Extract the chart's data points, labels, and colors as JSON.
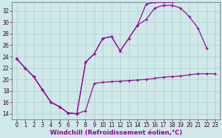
{
  "background_color": "#cfe8e8",
  "grid_color": "#aacccc",
  "line_color": "#990099",
  "marker": "+",
  "xlabel": "Windchill (Refroidissement éolien,°C)",
  "xlabel_fontsize": 6.5,
  "tick_fontsize": 5.5,
  "xlim": [
    -0.5,
    23.5
  ],
  "ylim": [
    13,
    33.5
  ],
  "yticks": [
    14,
    16,
    18,
    20,
    22,
    24,
    26,
    28,
    30,
    32
  ],
  "xticks": [
    0,
    1,
    2,
    3,
    4,
    5,
    6,
    7,
    8,
    9,
    10,
    11,
    12,
    13,
    14,
    15,
    16,
    17,
    18,
    19,
    20,
    21,
    22,
    23
  ],
  "series1_x": [
    0,
    1,
    2,
    3,
    4,
    5,
    6,
    7,
    8,
    9,
    10,
    11,
    12,
    13,
    14,
    15,
    16,
    17,
    18,
    19,
    20,
    21,
    22,
    23
  ],
  "series1_y": [
    23.7,
    22.0,
    20.5,
    18.2,
    16.0,
    15.2,
    14.1,
    14.0,
    14.5,
    19.3,
    19.5,
    19.6,
    19.7,
    19.8,
    19.9,
    20.0,
    20.2,
    20.4,
    20.5,
    20.6,
    20.8,
    21.0,
    21.0,
    21.0
  ],
  "series2_x": [
    0,
    1,
    2,
    3,
    4,
    5,
    6,
    7,
    8,
    9,
    10,
    11,
    12,
    13,
    14,
    15,
    16,
    17,
    18,
    19,
    20,
    21,
    22
  ],
  "series2_y": [
    23.7,
    22.0,
    20.5,
    18.2,
    16.0,
    15.2,
    14.1,
    14.0,
    23.0,
    24.5,
    27.2,
    27.5,
    25.0,
    27.2,
    29.5,
    30.5,
    32.5,
    33.0,
    33.0,
    32.5,
    31.0,
    29.0,
    25.5
  ],
  "series3_x": [
    0,
    1,
    2,
    3,
    4,
    5,
    6,
    7,
    8,
    9,
    10,
    11,
    12,
    13,
    14,
    15,
    16,
    17,
    18
  ],
  "series3_y": [
    23.7,
    22.0,
    20.5,
    18.2,
    16.0,
    15.2,
    14.1,
    14.0,
    23.0,
    24.5,
    27.2,
    27.5,
    25.0,
    27.2,
    29.5,
    33.2,
    33.5,
    33.5,
    33.5
  ]
}
